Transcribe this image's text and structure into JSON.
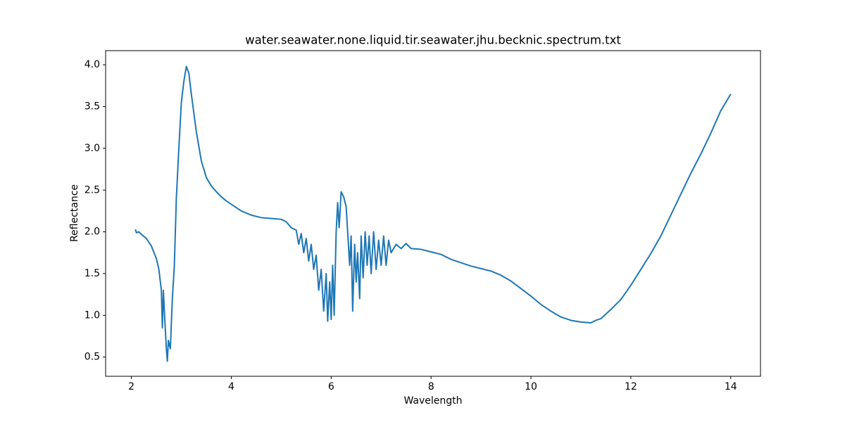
{
  "chart_data": {
    "type": "line",
    "title": "water.seawater.none.liquid.tir.seawater.jhu.becknic.spectrum.txt",
    "xlabel": "Wavelength",
    "ylabel": "Reflectance",
    "color": "#1f77b4",
    "xlim": [
      1.484,
      14.596
    ],
    "ylim": [
      0.27,
      4.17
    ],
    "xticks": [
      2,
      4,
      6,
      8,
      10,
      12,
      14
    ],
    "yticks": [
      0.5,
      {
        "value": 1.0,
        "label": "1.0"
      },
      1.5,
      {
        "value": 2.0,
        "label": "2.0"
      },
      2.5,
      {
        "value": 3.0,
        "label": "3.0"
      },
      3.5,
      {
        "value": 4.0,
        "label": "4.0"
      }
    ],
    "grid": false,
    "x": [
      2.08,
      2.1,
      2.15,
      2.2,
      2.3,
      2.4,
      2.5,
      2.55,
      2.6,
      2.62,
      2.64,
      2.66,
      2.7,
      2.72,
      2.74,
      2.78,
      2.82,
      2.86,
      2.9,
      2.95,
      3.0,
      3.05,
      3.1,
      3.15,
      3.2,
      3.3,
      3.4,
      3.5,
      3.6,
      3.7,
      3.8,
      3.9,
      4.0,
      4.2,
      4.4,
      4.6,
      4.8,
      5.0,
      5.1,
      5.2,
      5.3,
      5.35,
      5.4,
      5.45,
      5.5,
      5.55,
      5.6,
      5.65,
      5.7,
      5.75,
      5.8,
      5.85,
      5.9,
      5.93,
      5.97,
      6.0,
      6.03,
      6.06,
      6.1,
      6.13,
      6.16,
      6.2,
      6.25,
      6.3,
      6.33,
      6.37,
      6.4,
      6.43,
      6.47,
      6.5,
      6.53,
      6.57,
      6.6,
      6.64,
      6.68,
      6.72,
      6.76,
      6.8,
      6.85,
      6.9,
      6.95,
      7.0,
      7.05,
      7.1,
      7.15,
      7.2,
      7.3,
      7.4,
      7.5,
      7.6,
      7.8,
      8.0,
      8.2,
      8.4,
      8.6,
      8.8,
      9.0,
      9.2,
      9.4,
      9.6,
      9.8,
      10.0,
      10.2,
      10.4,
      10.6,
      10.8,
      11.0,
      11.2,
      11.3,
      11.4,
      11.6,
      11.8,
      12.0,
      12.2,
      12.4,
      12.6,
      12.8,
      13.0,
      13.2,
      13.4,
      13.6,
      13.8,
      14.0
    ],
    "y": [
      2.03,
      1.99,
      2.0,
      1.97,
      1.92,
      1.83,
      1.68,
      1.55,
      1.3,
      0.85,
      1.3,
      1.05,
      0.6,
      0.45,
      0.7,
      0.6,
      1.2,
      1.6,
      2.4,
      3.0,
      3.55,
      3.8,
      3.98,
      3.9,
      3.65,
      3.2,
      2.85,
      2.65,
      2.55,
      2.48,
      2.42,
      2.37,
      2.33,
      2.25,
      2.2,
      2.17,
      2.16,
      2.15,
      2.12,
      2.05,
      2.02,
      1.85,
      1.98,
      1.75,
      1.92,
      1.65,
      1.85,
      1.55,
      1.72,
      1.3,
      1.55,
      1.05,
      1.5,
      0.93,
      1.4,
      0.95,
      1.6,
      1.0,
      2.0,
      2.35,
      2.05,
      2.48,
      2.42,
      2.3,
      2.0,
      1.6,
      1.95,
      1.05,
      1.85,
      1.4,
      1.75,
      1.2,
      1.95,
      1.45,
      2.0,
      1.6,
      1.95,
      1.5,
      2.0,
      1.55,
      1.9,
      1.6,
      1.95,
      1.6,
      1.9,
      1.75,
      1.85,
      1.8,
      1.86,
      1.8,
      1.79,
      1.76,
      1.73,
      1.67,
      1.63,
      1.59,
      1.56,
      1.53,
      1.48,
      1.41,
      1.32,
      1.23,
      1.13,
      1.05,
      0.98,
      0.94,
      0.92,
      0.91,
      0.94,
      0.96,
      1.07,
      1.19,
      1.36,
      1.55,
      1.74,
      1.95,
      2.2,
      2.45,
      2.7,
      2.93,
      3.18,
      3.45,
      3.65
    ]
  }
}
